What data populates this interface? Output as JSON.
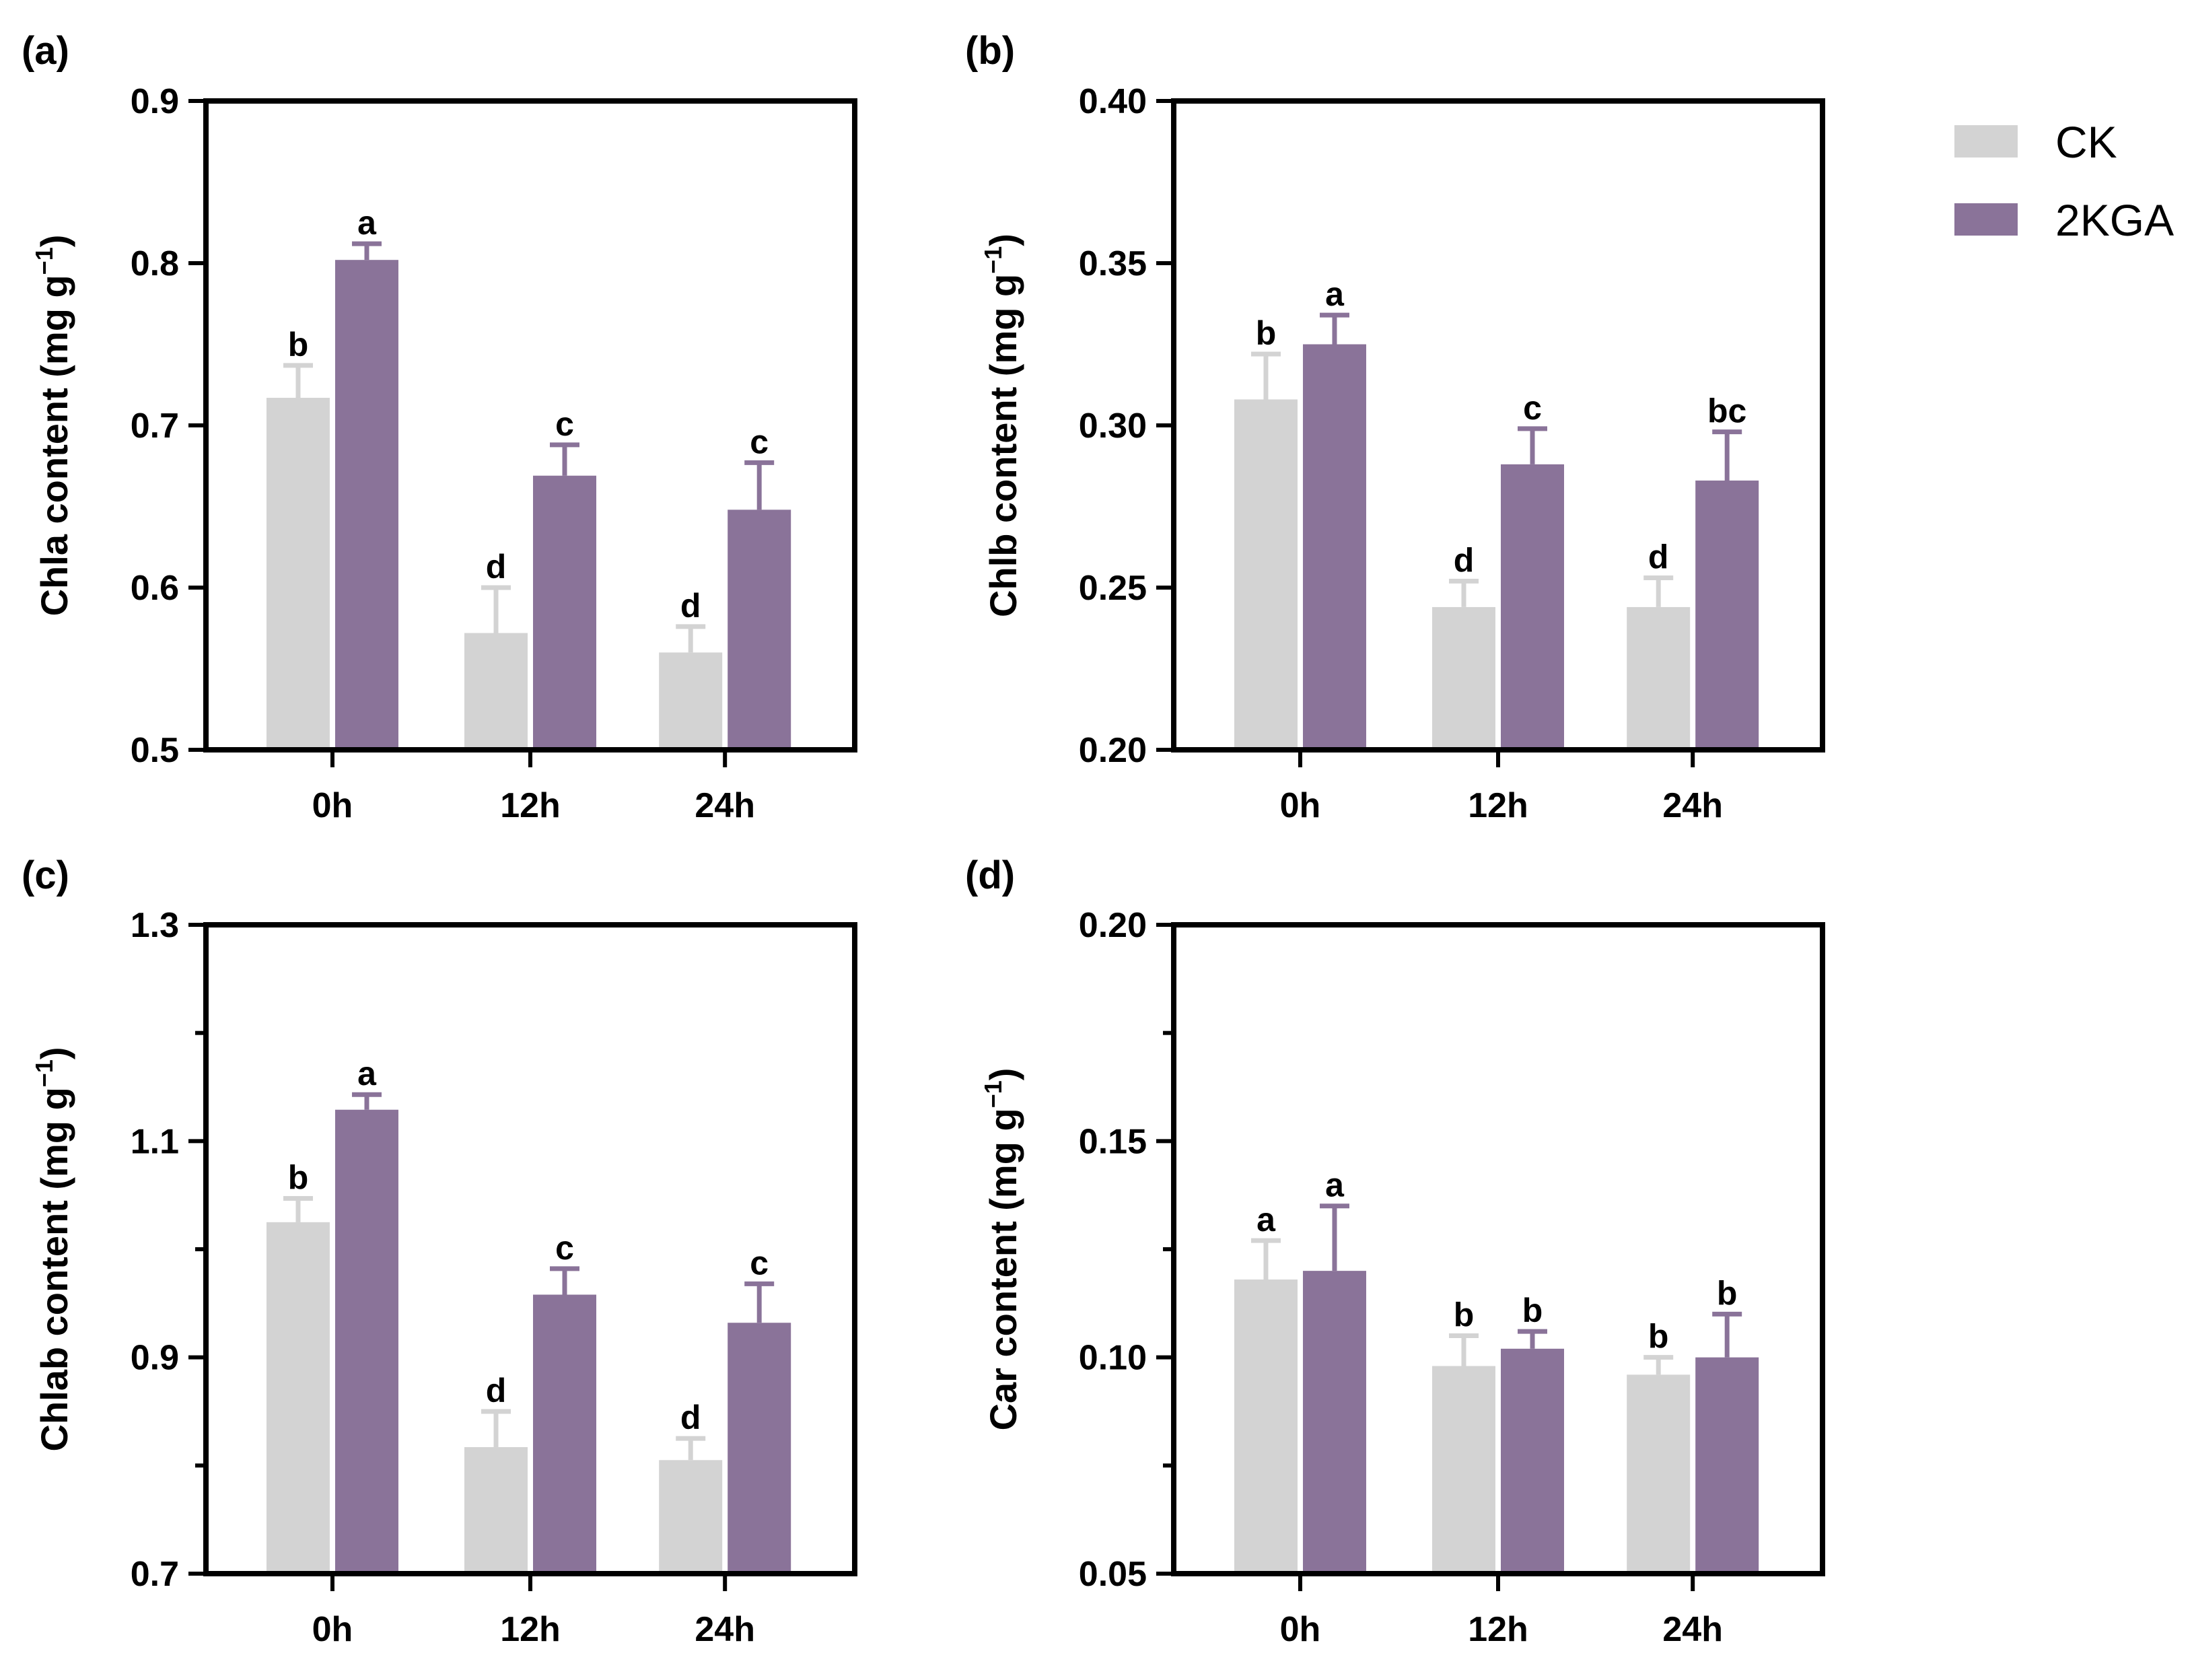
{
  "legend": [
    {
      "name": "CK",
      "color": "#d3d3d3"
    },
    {
      "name": "2KGA",
      "color": "#8a7399"
    }
  ],
  "chart_data": [
    {
      "type": "bar",
      "panel_label": "(a)",
      "categories": [
        "0h",
        "12h",
        "24h"
      ],
      "ylabel": "Chla content (mg g",
      "ylabel_sup": "−1",
      "ylabel_close": ")",
      "ylim": [
        0.5,
        0.9
      ],
      "yticks": [
        0.5,
        0.6,
        0.7,
        0.8,
        0.9
      ],
      "ytick_labels": [
        "0.5",
        "0.6",
        "0.7",
        "0.8",
        "0.9"
      ],
      "yminor": [],
      "series": [
        {
          "name": "CK",
          "values": [
            0.717,
            0.572,
            0.56
          ],
          "errors": [
            0.02,
            0.028,
            0.016
          ],
          "letters": [
            "b",
            "d",
            "d"
          ]
        },
        {
          "name": "2KGA",
          "values": [
            0.802,
            0.669,
            0.648
          ],
          "errors": [
            0.01,
            0.019,
            0.029
          ],
          "letters": [
            "a",
            "c",
            "c"
          ]
        }
      ]
    },
    {
      "type": "bar",
      "panel_label": "(b)",
      "categories": [
        "0h",
        "12h",
        "24h"
      ],
      "ylabel": "Chlb content (mg g",
      "ylabel_sup": "−1",
      "ylabel_close": ")",
      "ylim": [
        0.2,
        0.4
      ],
      "yticks": [
        0.2,
        0.25,
        0.3,
        0.35,
        0.4
      ],
      "ytick_labels": [
        "0.20",
        "0.25",
        "0.30",
        "0.35",
        "0.40"
      ],
      "yminor": [],
      "series": [
        {
          "name": "CK",
          "values": [
            0.308,
            0.244,
            0.244
          ],
          "errors": [
            0.014,
            0.008,
            0.009
          ],
          "letters": [
            "b",
            "d",
            "d"
          ]
        },
        {
          "name": "2KGA",
          "values": [
            0.325,
            0.288,
            0.283
          ],
          "errors": [
            0.009,
            0.011,
            0.015
          ],
          "letters": [
            "a",
            "c",
            "bc"
          ]
        }
      ]
    },
    {
      "type": "bar",
      "panel_label": "(c)",
      "categories": [
        "0h",
        "12h",
        "24h"
      ],
      "ylabel": "Chlab content (mg g",
      "ylabel_sup": "−1",
      "ylabel_close": ")",
      "ylim": [
        0.7,
        1.3
      ],
      "yticks": [
        0.7,
        0.9,
        1.1,
        1.3
      ],
      "ytick_labels": [
        "0.7",
        "0.9",
        "1.1",
        "1.3"
      ],
      "yminor": [
        0.8,
        1.0,
        1.2
      ],
      "series": [
        {
          "name": "CK",
          "values": [
            1.025,
            0.817,
            0.805
          ],
          "errors": [
            0.022,
            0.033,
            0.02
          ],
          "letters": [
            "b",
            "d",
            "d"
          ]
        },
        {
          "name": "2KGA",
          "values": [
            1.129,
            0.958,
            0.932
          ],
          "errors": [
            0.014,
            0.024,
            0.036
          ],
          "letters": [
            "a",
            "c",
            "c"
          ]
        }
      ]
    },
    {
      "type": "bar",
      "panel_label": "(d)",
      "categories": [
        "0h",
        "12h",
        "24h"
      ],
      "ylabel": "Car content (mg g",
      "ylabel_sup": "−1",
      "ylabel_close": ")",
      "ylim": [
        0.05,
        0.2
      ],
      "yticks": [
        0.05,
        0.1,
        0.15,
        0.2
      ],
      "ytick_labels": [
        "0.05",
        "0.10",
        "0.15",
        "0.20"
      ],
      "yminor": [
        0.075,
        0.125,
        0.175
      ],
      "series": [
        {
          "name": "CK",
          "values": [
            0.118,
            0.098,
            0.096
          ],
          "errors": [
            0.009,
            0.007,
            0.004
          ],
          "letters": [
            "a",
            "b",
            "b"
          ]
        },
        {
          "name": "2KGA",
          "values": [
            0.12,
            0.102,
            0.1
          ],
          "errors": [
            0.015,
            0.004,
            0.01
          ],
          "letters": [
            "a",
            "b",
            "b"
          ]
        }
      ]
    }
  ]
}
